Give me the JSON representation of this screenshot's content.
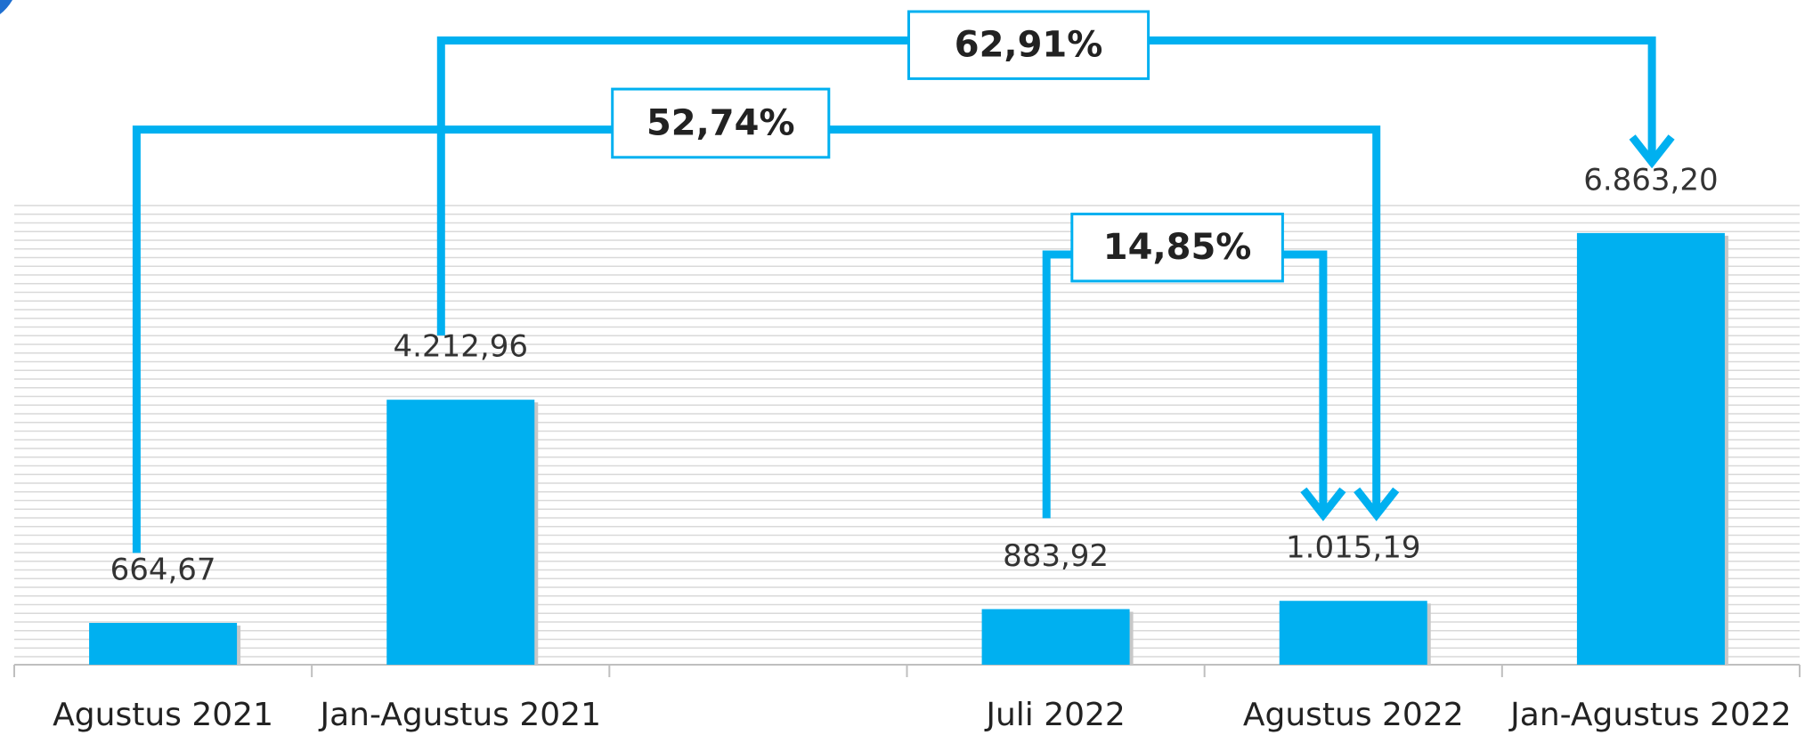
{
  "chart_data": {
    "type": "bar",
    "categories": [
      "Agustus 2021",
      "Jan-Agustus 2021",
      null,
      "Juli 2022",
      "Agustus 2022",
      "Jan-Agustus 2022"
    ],
    "values": [
      664.67,
      4212.96,
      null,
      883.92,
      1015.19,
      6863.2
    ],
    "value_labels": [
      "664,67",
      "4.212,96",
      null,
      "883,92",
      "1.015,19",
      "6.863,20"
    ],
    "color": "#00b0f0",
    "ylim": [
      0,
      7300
    ],
    "annotations": [
      "62,91%",
      "52,74%",
      "14,85%"
    ]
  }
}
